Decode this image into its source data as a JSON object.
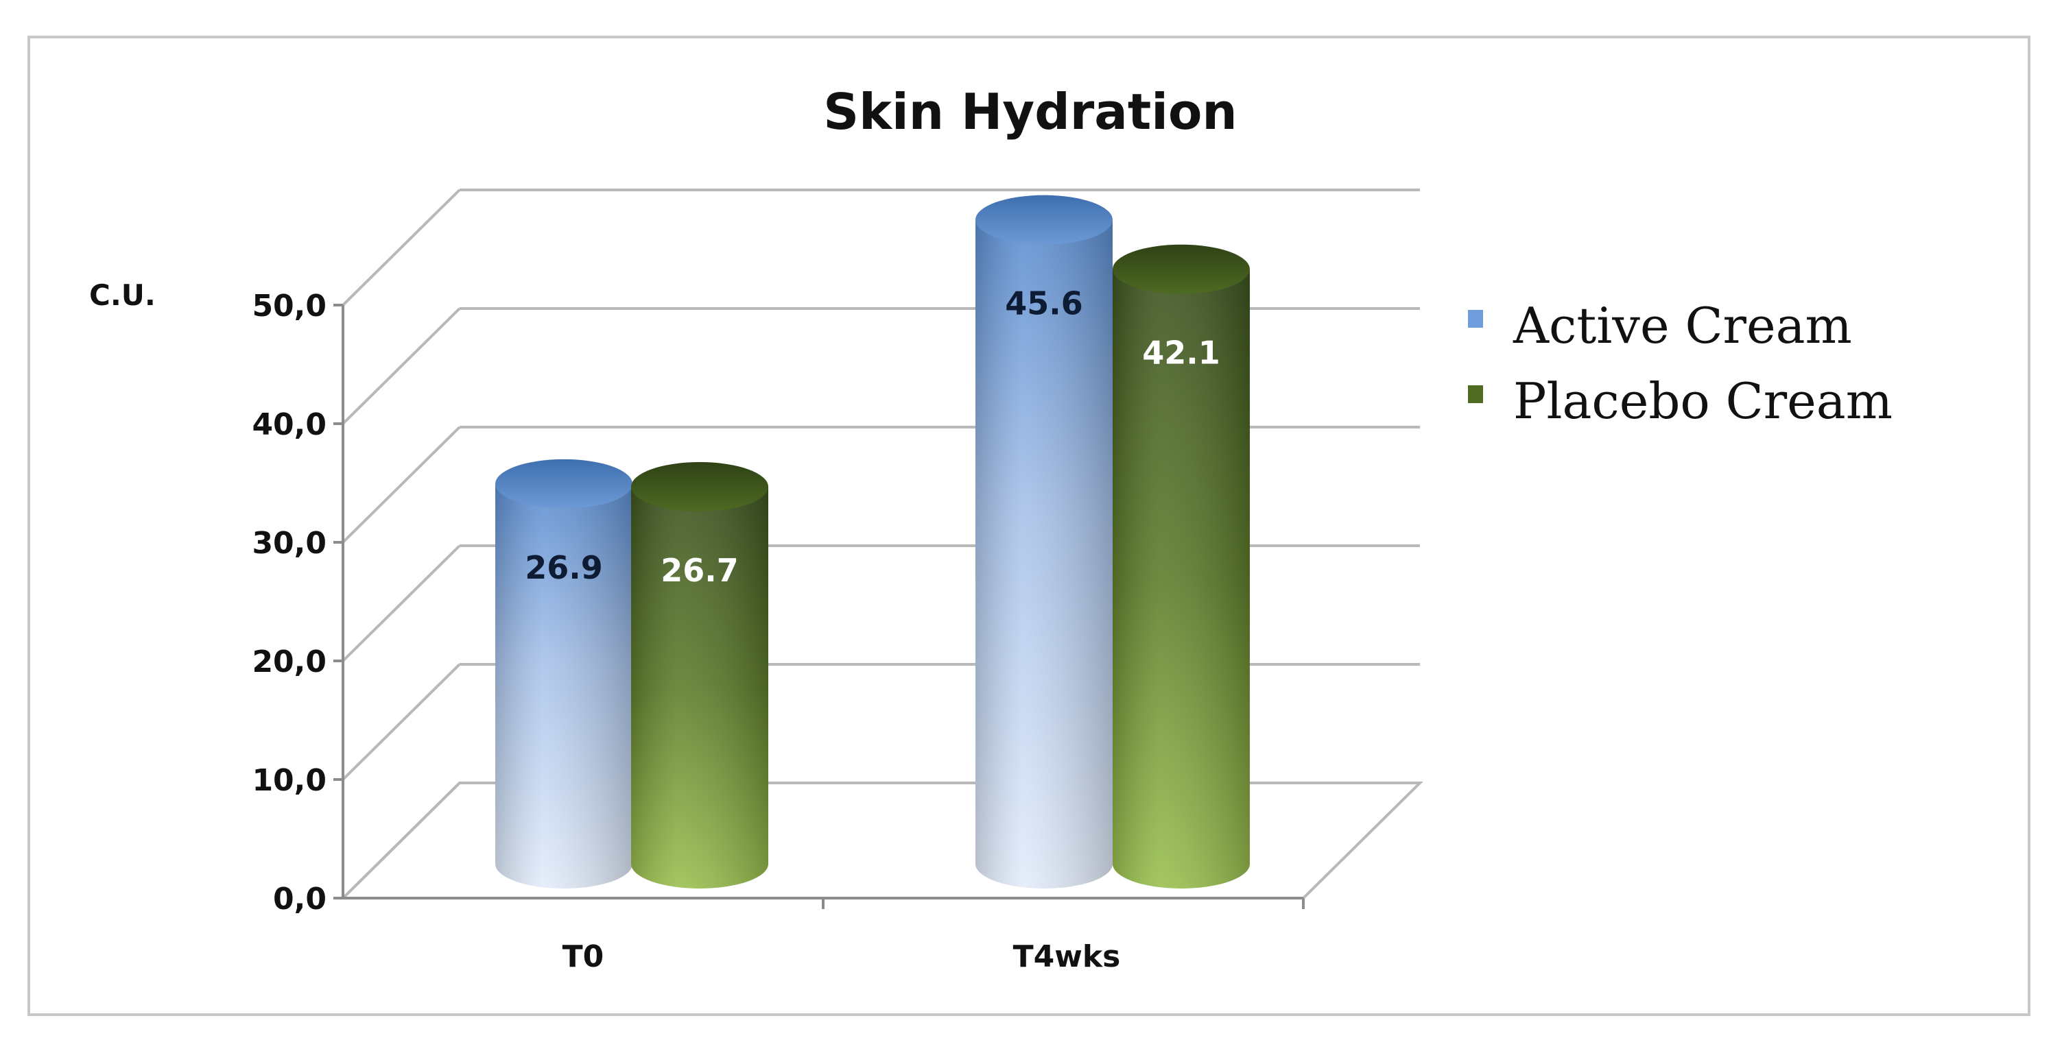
{
  "chart_data": {
    "type": "bar",
    "title": "Skin Hydration",
    "ylabel": "C.U.",
    "xlabel": "",
    "categories": [
      "T0",
      "T4wks"
    ],
    "ylim": [
      0,
      50
    ],
    "yticks": [
      "0,0",
      "10,0",
      "20,0",
      "30,0",
      "40,0",
      "50,0"
    ],
    "grid": true,
    "legend_position": "right",
    "series": [
      {
        "name": "Active Cream",
        "values": [
          26.9,
          45.6
        ],
        "labels": [
          "26.9",
          "45.6"
        ],
        "color": "#4f81bd"
      },
      {
        "name": "Placebo Cream",
        "values": [
          26.7,
          42.1
        ],
        "labels": [
          "26.7",
          "42.1"
        ],
        "color": "#4f6228"
      }
    ]
  }
}
